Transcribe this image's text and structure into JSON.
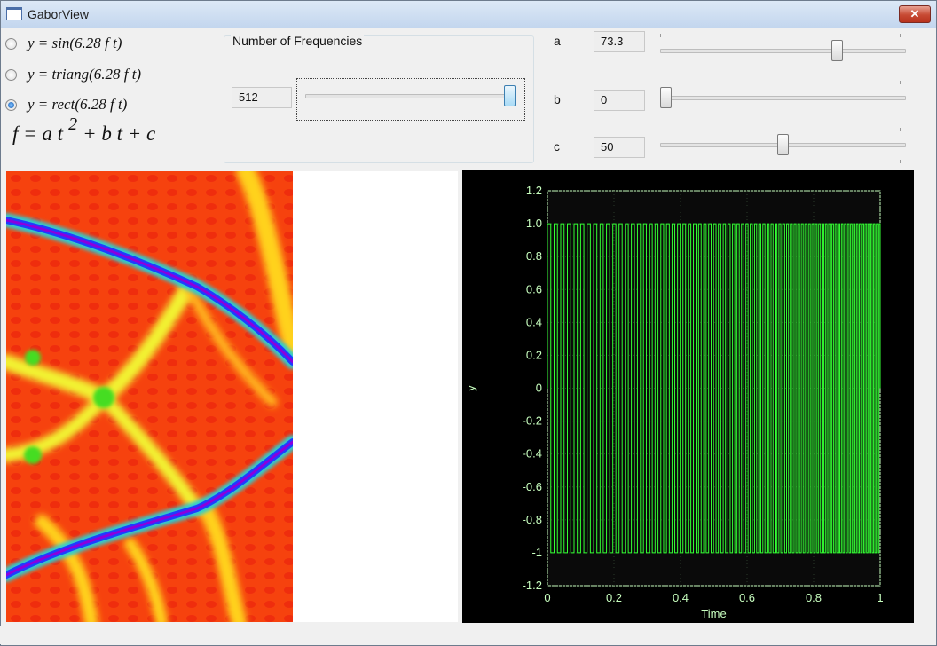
{
  "window": {
    "title": "GaborView",
    "close_label": "✕"
  },
  "functions": [
    {
      "label": "y = sin(6.28 f t)",
      "checked": false
    },
    {
      "label": "y = triang(6.28 f t)",
      "checked": false
    },
    {
      "label": "y = rect(6.28 f t)",
      "checked": true
    }
  ],
  "formula": {
    "lhs": "f = a t",
    "power": "2",
    "rhs": "+ b t + c"
  },
  "frequencies": {
    "title": "Number of Frequencies",
    "value": "512",
    "slider_fraction": 1.0
  },
  "params": [
    {
      "name": "a",
      "value": "73.3",
      "slider_fraction": 0.73
    },
    {
      "name": "b",
      "value": "0",
      "slider_fraction": 0.0
    },
    {
      "name": "c",
      "value": "50",
      "slider_fraction": 0.5
    }
  ],
  "colors": {
    "trace": "#33ff33",
    "axis_text": "#c8ffbf",
    "chart_bg": "#000000",
    "plot_bg": "#0a0a0a"
  },
  "chart_data": {
    "type": "line",
    "xlabel": "Time",
    "ylabel": "y",
    "xlim": [
      0,
      1
    ],
    "ylim": [
      -1.2,
      1.2
    ],
    "x_ticks": [
      "0",
      "0.2",
      "0.4",
      "0.6",
      "0.8",
      "1"
    ],
    "y_ticks": [
      "1.2",
      "1.0",
      "0.8",
      "0.6",
      "0.4",
      "0.2",
      "0",
      "-0.2",
      "-0.4",
      "-0.6",
      "-0.8",
      "-1",
      "-1.2"
    ],
    "series": [
      {
        "signal": "rect(6.28 f t)",
        "a": 73.3,
        "b": 0,
        "c": 50,
        "values": [
          -1,
          1
        ]
      }
    ],
    "grid": true
  }
}
